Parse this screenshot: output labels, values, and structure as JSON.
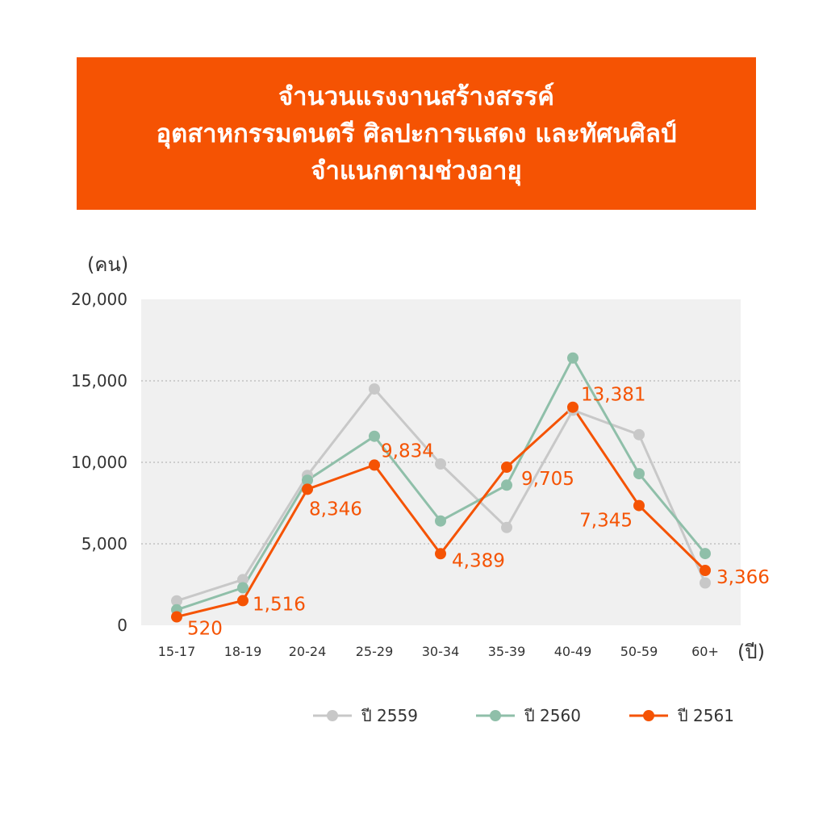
{
  "title_lines": [
    "จำนวนแรงงานสร้างสรรค์",
    "อุตสาหกรรมดนตรี ศิลปะการแสดง และทัศนศิลป์",
    "จำแนกตามช่วงอายุ"
  ],
  "colors": {
    "accent": "#F55303",
    "plot_bg": "#F0F0F0",
    "s2559": "#C8C8C8",
    "s2560": "#8FBFA9",
    "s2561": "#F55303"
  },
  "chart_data": {
    "type": "line",
    "title": "จำนวนแรงงานสร้างสรรค์ อุตสาหกรรมดนตรี ศิลปะการแสดง และทัศนศิลป์ จำแนกตามช่วงอายุ",
    "ylabel": "(คน)",
    "xlabel": "(ปี)",
    "ylim": [
      0,
      20000
    ],
    "yticks": [
      "0",
      "5,000",
      "10,000",
      "15,000",
      "20,000"
    ],
    "categories": [
      "15-17",
      "18-19",
      "20-24",
      "25-29",
      "30-34",
      "35-39",
      "40-49",
      "50-59",
      "60+"
    ],
    "grid": "horizontal dotted",
    "legend_position": "bottom",
    "series": [
      {
        "name": "ปี 2559",
        "values": [
          1500,
          2800,
          9200,
          14500,
          9900,
          6000,
          13200,
          11700,
          2600
        ]
      },
      {
        "name": "ปี 2560",
        "values": [
          950,
          2300,
          8900,
          11600,
          6400,
          8600,
          16400,
          9300,
          4400
        ]
      },
      {
        "name": "ปี 2561",
        "values": [
          520,
          1516,
          8346,
          9834,
          4389,
          9705,
          13381,
          7345,
          3366
        ]
      }
    ],
    "data_labels": [
      "520",
      "1,516",
      "8,346",
      "9,834",
      "4,389",
      "9,705",
      "13,381",
      "7,345",
      "3,366"
    ]
  }
}
